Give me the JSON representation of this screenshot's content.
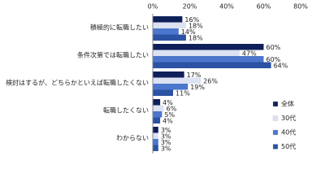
{
  "chart_data": {
    "type": "hbar",
    "categories": [
      "積極的に転職したい",
      "条件次第では転職したい",
      "検討はするが、どちらかといえば転職したくない",
      "転職したくない",
      "わからない"
    ],
    "series": [
      {
        "name": "全体",
        "color": "#0f1f5a",
        "values": [
          16,
          60,
          17,
          4,
          3
        ],
        "value_labels": [
          "16%",
          "60%",
          "17%",
          "4%",
          "3%"
        ]
      },
      {
        "name": "30代",
        "color": "#dce2f2",
        "values": [
          18,
          47,
          26,
          6,
          3
        ],
        "value_labels": [
          "18%",
          "47%",
          "26%",
          "6%",
          "3%"
        ]
      },
      {
        "name": "40代",
        "color": "#4b76cb",
        "values": [
          14,
          60,
          19,
          5,
          3
        ],
        "value_labels": [
          "14%",
          "60%",
          "19%",
          "5%",
          "3%"
        ]
      },
      {
        "name": "50代",
        "color": "#2c52a3",
        "values": [
          18,
          64,
          11,
          4,
          3
        ],
        "value_labels": [
          "18%",
          "64%",
          "11%",
          "4%",
          "3%"
        ]
      }
    ],
    "xlim": [
      0,
      80
    ],
    "xticks": [
      {
        "value": 0,
        "label": "0%"
      },
      {
        "value": 20,
        "label": "20%"
      },
      {
        "value": 40,
        "label": "40%"
      },
      {
        "value": 60,
        "label": "60%"
      },
      {
        "value": 80,
        "label": "80%"
      }
    ],
    "grid": false,
    "legend": "lower right"
  }
}
